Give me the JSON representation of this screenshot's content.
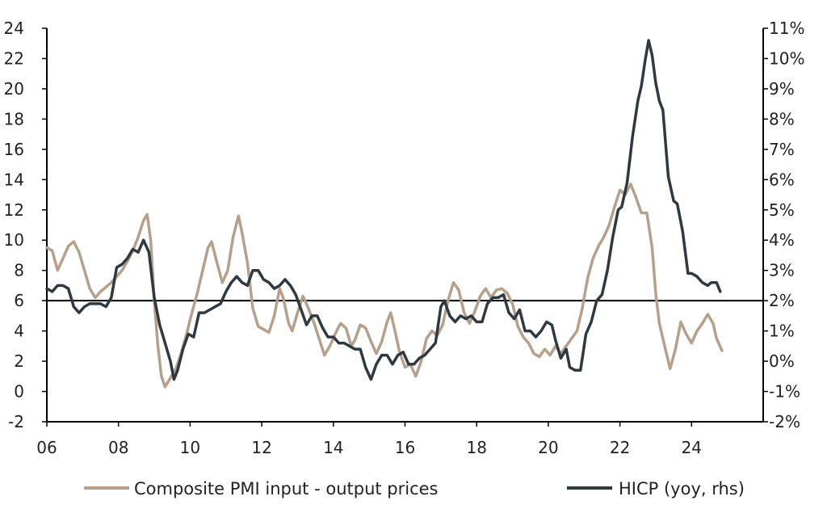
{
  "chart_data": {
    "type": "line",
    "title": "",
    "xlabel": "",
    "ylabel": "",
    "x_ticks": [
      "06",
      "08",
      "10",
      "12",
      "14",
      "16",
      "18",
      "20",
      "22",
      "24"
    ],
    "x_range": [
      2006,
      2026
    ],
    "y_left": {
      "range": [
        -2,
        24
      ],
      "ticks": [
        "-2",
        "0",
        "2",
        "4",
        "6",
        "8",
        "10",
        "12",
        "14",
        "16",
        "18",
        "20",
        "22",
        "24"
      ]
    },
    "y_right": {
      "range": [
        -2,
        11
      ],
      "ticks": [
        "-2%",
        "-1%",
        "0%",
        "1%",
        "2%",
        "3%",
        "4%",
        "5%",
        "6%",
        "7%",
        "8%",
        "9%",
        "10%",
        "11%"
      ]
    },
    "reference_line": {
      "axis": "left",
      "value": 6
    },
    "grid": false,
    "legend_position": "bottom",
    "series": [
      {
        "name": "Composite PMI input - output prices",
        "axis": "left",
        "color": "#b5a08c",
        "points": [
          [
            2006.0,
            9.5
          ],
          [
            2006.15,
            9.3
          ],
          [
            2006.3,
            8.0
          ],
          [
            2006.45,
            8.8
          ],
          [
            2006.6,
            9.6
          ],
          [
            2006.75,
            9.9
          ],
          [
            2006.9,
            9.2
          ],
          [
            2007.05,
            8.0
          ],
          [
            2007.2,
            6.8
          ],
          [
            2007.35,
            6.2
          ],
          [
            2007.5,
            6.6
          ],
          [
            2007.65,
            6.9
          ],
          [
            2007.8,
            7.2
          ],
          [
            2007.95,
            7.6
          ],
          [
            2008.1,
            8.0
          ],
          [
            2008.25,
            8.6
          ],
          [
            2008.4,
            9.3
          ],
          [
            2008.55,
            10.2
          ],
          [
            2008.7,
            11.3
          ],
          [
            2008.8,
            11.7
          ],
          [
            2008.9,
            10.0
          ],
          [
            2009.0,
            6.0
          ],
          [
            2009.1,
            3.0
          ],
          [
            2009.2,
            1.0
          ],
          [
            2009.3,
            0.3
          ],
          [
            2009.45,
            0.9
          ],
          [
            2009.6,
            1.5
          ],
          [
            2009.75,
            2.5
          ],
          [
            2009.9,
            3.8
          ],
          [
            2010.05,
            5.2
          ],
          [
            2010.2,
            6.5
          ],
          [
            2010.35,
            8.0
          ],
          [
            2010.5,
            9.5
          ],
          [
            2010.6,
            9.9
          ],
          [
            2010.75,
            8.5
          ],
          [
            2010.9,
            7.2
          ],
          [
            2011.05,
            8.0
          ],
          [
            2011.2,
            10.2
          ],
          [
            2011.35,
            11.6
          ],
          [
            2011.45,
            10.5
          ],
          [
            2011.6,
            8.5
          ],
          [
            2011.75,
            5.5
          ],
          [
            2011.9,
            4.3
          ],
          [
            2012.05,
            4.1
          ],
          [
            2012.2,
            3.9
          ],
          [
            2012.35,
            5.0
          ],
          [
            2012.5,
            6.8
          ],
          [
            2012.6,
            6.2
          ],
          [
            2012.75,
            4.5
          ],
          [
            2012.85,
            4.0
          ],
          [
            2013.0,
            5.2
          ],
          [
            2013.15,
            6.3
          ],
          [
            2013.3,
            5.5
          ],
          [
            2013.45,
            4.6
          ],
          [
            2013.6,
            3.5
          ],
          [
            2013.75,
            2.4
          ],
          [
            2013.9,
            3.0
          ],
          [
            2014.05,
            3.8
          ],
          [
            2014.2,
            4.5
          ],
          [
            2014.35,
            4.2
          ],
          [
            2014.5,
            3.0
          ],
          [
            2014.6,
            3.4
          ],
          [
            2014.75,
            4.4
          ],
          [
            2014.9,
            4.2
          ],
          [
            2015.05,
            3.3
          ],
          [
            2015.2,
            2.5
          ],
          [
            2015.35,
            3.3
          ],
          [
            2015.5,
            4.6
          ],
          [
            2015.6,
            5.2
          ],
          [
            2015.7,
            4.2
          ],
          [
            2015.85,
            2.6
          ],
          [
            2016.0,
            1.6
          ],
          [
            2016.15,
            1.8
          ],
          [
            2016.3,
            1.0
          ],
          [
            2016.45,
            2.0
          ],
          [
            2016.6,
            3.5
          ],
          [
            2016.75,
            4.0
          ],
          [
            2016.9,
            3.7
          ],
          [
            2017.05,
            4.4
          ],
          [
            2017.2,
            6.0
          ],
          [
            2017.35,
            7.2
          ],
          [
            2017.5,
            6.7
          ],
          [
            2017.65,
            5.2
          ],
          [
            2017.8,
            4.5
          ],
          [
            2017.95,
            5.3
          ],
          [
            2018.1,
            6.3
          ],
          [
            2018.25,
            6.8
          ],
          [
            2018.4,
            6.2
          ],
          [
            2018.55,
            6.7
          ],
          [
            2018.7,
            6.8
          ],
          [
            2018.85,
            6.5
          ],
          [
            2019.0,
            5.8
          ],
          [
            2019.15,
            4.3
          ],
          [
            2019.3,
            3.6
          ],
          [
            2019.45,
            3.2
          ],
          [
            2019.6,
            2.5
          ],
          [
            2019.75,
            2.3
          ],
          [
            2019.9,
            2.8
          ],
          [
            2020.05,
            2.4
          ],
          [
            2020.2,
            3.0
          ],
          [
            2020.35,
            2.5
          ],
          [
            2020.5,
            3.0
          ],
          [
            2020.65,
            3.5
          ],
          [
            2020.8,
            4.0
          ],
          [
            2020.95,
            5.5
          ],
          [
            2021.1,
            7.5
          ],
          [
            2021.25,
            8.8
          ],
          [
            2021.4,
            9.6
          ],
          [
            2021.55,
            10.2
          ],
          [
            2021.7,
            11.0
          ],
          [
            2021.85,
            12.2
          ],
          [
            2022.0,
            13.3
          ],
          [
            2022.15,
            13.0
          ],
          [
            2022.3,
            13.7
          ],
          [
            2022.45,
            12.8
          ],
          [
            2022.6,
            11.8
          ],
          [
            2022.75,
            11.8
          ],
          [
            2022.9,
            9.5
          ],
          [
            2023.0,
            6.5
          ],
          [
            2023.1,
            4.5
          ],
          [
            2023.25,
            3.0
          ],
          [
            2023.4,
            1.5
          ],
          [
            2023.55,
            2.8
          ],
          [
            2023.7,
            4.6
          ],
          [
            2023.85,
            3.8
          ],
          [
            2024.0,
            3.2
          ],
          [
            2024.15,
            4.0
          ],
          [
            2024.3,
            4.5
          ],
          [
            2024.45,
            5.1
          ],
          [
            2024.6,
            4.5
          ],
          [
            2024.7,
            3.5
          ],
          [
            2024.85,
            2.7
          ]
        ]
      },
      {
        "name": "HICP (yoy, rhs)",
        "axis": "right",
        "color": "#2f3a40",
        "points": [
          [
            2006.0,
            2.4
          ],
          [
            2006.15,
            2.3
          ],
          [
            2006.3,
            2.5
          ],
          [
            2006.45,
            2.5
          ],
          [
            2006.6,
            2.4
          ],
          [
            2006.75,
            1.8
          ],
          [
            2006.9,
            1.6
          ],
          [
            2007.05,
            1.8
          ],
          [
            2007.2,
            1.9
          ],
          [
            2007.35,
            1.9
          ],
          [
            2007.5,
            1.9
          ],
          [
            2007.65,
            1.8
          ],
          [
            2007.8,
            2.1
          ],
          [
            2007.95,
            3.1
          ],
          [
            2008.1,
            3.2
          ],
          [
            2008.25,
            3.4
          ],
          [
            2008.4,
            3.7
          ],
          [
            2008.55,
            3.6
          ],
          [
            2008.7,
            4.0
          ],
          [
            2008.85,
            3.6
          ],
          [
            2009.0,
            2.1
          ],
          [
            2009.15,
            1.2
          ],
          [
            2009.3,
            0.6
          ],
          [
            2009.45,
            0.0
          ],
          [
            2009.55,
            -0.6
          ],
          [
            2009.65,
            -0.3
          ],
          [
            2009.8,
            0.4
          ],
          [
            2009.95,
            0.9
          ],
          [
            2010.1,
            0.8
          ],
          [
            2010.25,
            1.6
          ],
          [
            2010.4,
            1.6
          ],
          [
            2010.55,
            1.7
          ],
          [
            2010.7,
            1.8
          ],
          [
            2010.85,
            1.9
          ],
          [
            2011.0,
            2.3
          ],
          [
            2011.15,
            2.6
          ],
          [
            2011.3,
            2.8
          ],
          [
            2011.45,
            2.6
          ],
          [
            2011.6,
            2.5
          ],
          [
            2011.75,
            3.0
          ],
          [
            2011.9,
            3.0
          ],
          [
            2012.05,
            2.7
          ],
          [
            2012.2,
            2.6
          ],
          [
            2012.35,
            2.4
          ],
          [
            2012.5,
            2.5
          ],
          [
            2012.65,
            2.7
          ],
          [
            2012.8,
            2.5
          ],
          [
            2012.95,
            2.2
          ],
          [
            2013.1,
            1.7
          ],
          [
            2013.25,
            1.2
          ],
          [
            2013.4,
            1.5
          ],
          [
            2013.55,
            1.5
          ],
          [
            2013.7,
            1.1
          ],
          [
            2013.85,
            0.8
          ],
          [
            2014.0,
            0.8
          ],
          [
            2014.15,
            0.6
          ],
          [
            2014.3,
            0.6
          ],
          [
            2014.45,
            0.5
          ],
          [
            2014.6,
            0.4
          ],
          [
            2014.75,
            0.4
          ],
          [
            2014.9,
            -0.2
          ],
          [
            2015.05,
            -0.6
          ],
          [
            2015.2,
            -0.1
          ],
          [
            2015.35,
            0.2
          ],
          [
            2015.5,
            0.2
          ],
          [
            2015.65,
            -0.1
          ],
          [
            2015.8,
            0.2
          ],
          [
            2015.95,
            0.3
          ],
          [
            2016.1,
            -0.1
          ],
          [
            2016.25,
            -0.1
          ],
          [
            2016.4,
            0.1
          ],
          [
            2016.55,
            0.2
          ],
          [
            2016.7,
            0.4
          ],
          [
            2016.85,
            0.6
          ],
          [
            2017.0,
            1.8
          ],
          [
            2017.1,
            2.0
          ],
          [
            2017.25,
            1.5
          ],
          [
            2017.4,
            1.3
          ],
          [
            2017.55,
            1.5
          ],
          [
            2017.7,
            1.4
          ],
          [
            2017.85,
            1.5
          ],
          [
            2018.0,
            1.3
          ],
          [
            2018.15,
            1.3
          ],
          [
            2018.3,
            1.9
          ],
          [
            2018.45,
            2.1
          ],
          [
            2018.6,
            2.1
          ],
          [
            2018.75,
            2.2
          ],
          [
            2018.9,
            1.6
          ],
          [
            2019.05,
            1.4
          ],
          [
            2019.2,
            1.7
          ],
          [
            2019.35,
            1.0
          ],
          [
            2019.5,
            1.0
          ],
          [
            2019.65,
            0.8
          ],
          [
            2019.8,
            1.0
          ],
          [
            2019.95,
            1.3
          ],
          [
            2020.1,
            1.2
          ],
          [
            2020.2,
            0.7
          ],
          [
            2020.35,
            0.1
          ],
          [
            2020.5,
            0.4
          ],
          [
            2020.6,
            -0.2
          ],
          [
            2020.75,
            -0.3
          ],
          [
            2020.9,
            -0.3
          ],
          [
            2021.05,
            0.9
          ],
          [
            2021.2,
            1.3
          ],
          [
            2021.35,
            2.0
          ],
          [
            2021.5,
            2.2
          ],
          [
            2021.65,
            3.0
          ],
          [
            2021.8,
            4.1
          ],
          [
            2021.95,
            5.0
          ],
          [
            2022.05,
            5.1
          ],
          [
            2022.2,
            5.9
          ],
          [
            2022.35,
            7.4
          ],
          [
            2022.5,
            8.6
          ],
          [
            2022.6,
            9.1
          ],
          [
            2022.7,
            9.9
          ],
          [
            2022.8,
            10.6
          ],
          [
            2022.9,
            10.1
          ],
          [
            2023.0,
            9.2
          ],
          [
            2023.1,
            8.6
          ],
          [
            2023.2,
            8.3
          ],
          [
            2023.35,
            6.1
          ],
          [
            2023.5,
            5.3
          ],
          [
            2023.6,
            5.2
          ],
          [
            2023.75,
            4.3
          ],
          [
            2023.9,
            2.9
          ],
          [
            2024.0,
            2.9
          ],
          [
            2024.15,
            2.8
          ],
          [
            2024.3,
            2.6
          ],
          [
            2024.45,
            2.5
          ],
          [
            2024.55,
            2.6
          ],
          [
            2024.7,
            2.6
          ],
          [
            2024.8,
            2.3
          ]
        ]
      }
    ]
  }
}
